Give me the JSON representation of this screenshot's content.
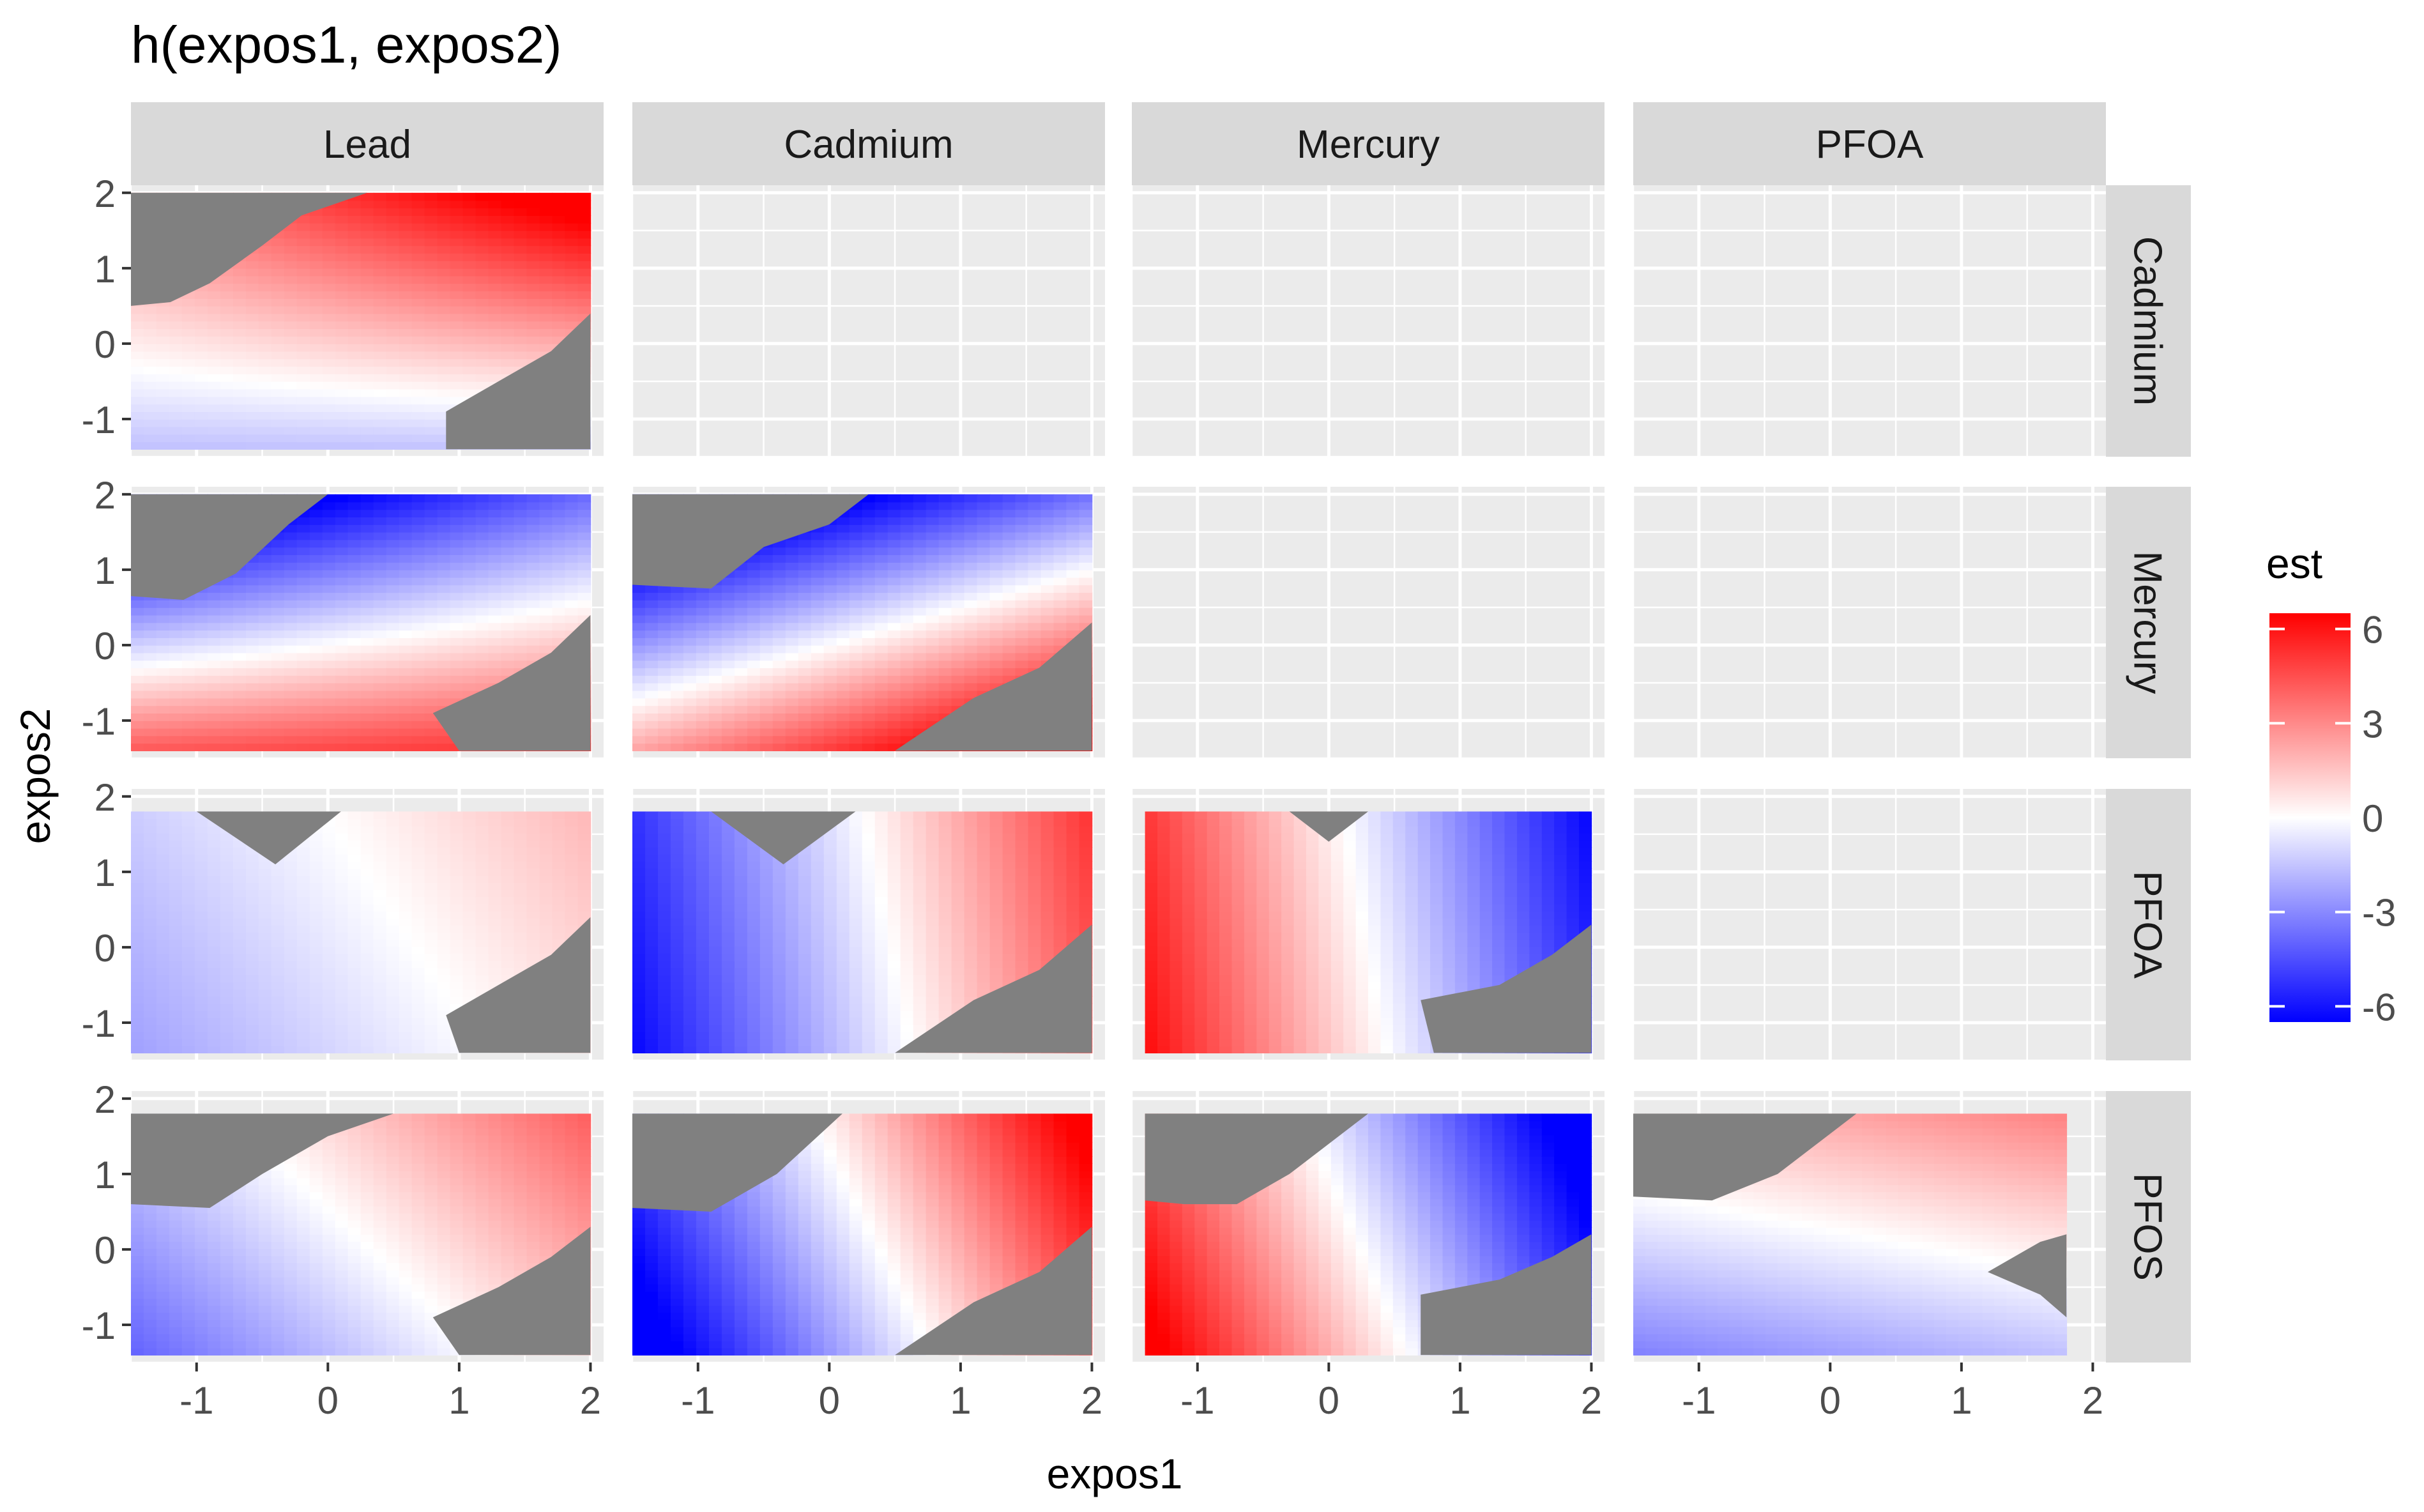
{
  "chart_data": {
    "type": "heatmap",
    "title": "h(expos1, expos2)",
    "xlabel": "expos1",
    "ylabel": "expos2",
    "col_facets": [
      "Lead",
      "Cadmium",
      "Mercury",
      "PFOA"
    ],
    "row_facets": [
      "Cadmium",
      "Mercury",
      "PFOA",
      "PFOS"
    ],
    "x_ticks": [
      "-1",
      "0",
      "1",
      "2"
    ],
    "y_ticks": [
      "-1",
      "0",
      "1",
      "2"
    ],
    "x_tick_values": [
      -1,
      0,
      1,
      2
    ],
    "y_tick_values": [
      -1,
      0,
      1,
      2
    ],
    "xlim": [
      -1.5,
      2.1
    ],
    "ylim": [
      -1.5,
      2.1
    ],
    "grid": true,
    "legend": {
      "title": "est",
      "position": "right",
      "range": [
        -6.5,
        6.5
      ],
      "tick_labels": [
        "6",
        "3",
        "0",
        "-3",
        "-6"
      ],
      "tick_values": [
        6,
        3,
        0,
        -3,
        -6
      ],
      "low_color": "#0000ff",
      "mid_color": "#ffffff",
      "high_color": "#ff0000",
      "na_color": "#808080"
    },
    "panels": [
      {
        "row": "Cadmium",
        "col": "Lead",
        "x_range": [
          -1.5,
          2.0
        ],
        "y_range": [
          -1.4,
          2.0
        ],
        "surface": {
          "a": 0.5,
          "b": 2.0,
          "c": 1.2,
          "x0": 0,
          "y0": 0,
          "bend": 0.35
        },
        "mask_upper_left": [
          [
            -1.5,
            0.5
          ],
          [
            -1.2,
            0.55
          ],
          [
            -0.9,
            0.8
          ],
          [
            -0.5,
            1.3
          ],
          [
            -0.2,
            1.7
          ],
          [
            0.3,
            2.0
          ]
        ],
        "mask_lower_right": [
          [
            0.9,
            -1.4
          ],
          [
            0.9,
            -0.9
          ],
          [
            1.3,
            -0.5
          ],
          [
            1.7,
            -0.1
          ],
          [
            2.0,
            0.4
          ]
        ]
      },
      {
        "row": "Mercury",
        "col": "Lead",
        "x_range": [
          -1.5,
          2.0
        ],
        "y_range": [
          -1.4,
          2.0
        ],
        "surface": {
          "a": 0.8,
          "b": -3.4,
          "c": 0.0,
          "x0": 0,
          "y0": 0,
          "bend": 0.35
        },
        "mask_upper_left": [
          [
            -1.5,
            0.65
          ],
          [
            -1.1,
            0.6
          ],
          [
            -0.7,
            0.95
          ],
          [
            -0.3,
            1.6
          ],
          [
            0.0,
            2.0
          ]
        ],
        "mask_lower_right": [
          [
            1.0,
            -1.4
          ],
          [
            0.8,
            -0.9
          ],
          [
            1.3,
            -0.5
          ],
          [
            1.7,
            -0.1
          ],
          [
            2.0,
            0.4
          ]
        ]
      },
      {
        "row": "Mercury",
        "col": "Cadmium",
        "x_range": [
          -1.5,
          2.0
        ],
        "y_range": [
          -1.4,
          2.0
        ],
        "surface": {
          "a": 1.8,
          "b": -3.6,
          "c": 0.0,
          "x0": 0,
          "y0": 0,
          "bend": 0.0
        },
        "mask_upper_left": [
          [
            -1.5,
            0.8
          ],
          [
            -0.9,
            0.75
          ],
          [
            -0.5,
            1.3
          ],
          [
            0.0,
            1.6
          ],
          [
            0.3,
            2.0
          ]
        ],
        "mask_lower_right": [
          [
            0.5,
            -1.4
          ],
          [
            1.1,
            -0.7
          ],
          [
            1.6,
            -0.3
          ],
          [
            2.0,
            0.3
          ]
        ]
      },
      {
        "row": "PFOA",
        "col": "Lead",
        "x_range": [
          -1.5,
          2.0
        ],
        "y_range": [
          -1.4,
          1.8
        ],
        "surface": {
          "a": 0.9,
          "b": 0.35,
          "c": -0.6,
          "x0": 0,
          "y0": 0,
          "bend": 0.0
        },
        "mask_top_notch": [
          [
            -1.0,
            1.8
          ],
          [
            -0.4,
            1.1
          ],
          [
            0.1,
            1.8
          ]
        ],
        "mask_lower_right": [
          [
            1.0,
            -1.4
          ],
          [
            0.9,
            -0.9
          ],
          [
            1.3,
            -0.5
          ],
          [
            1.7,
            -0.1
          ],
          [
            2.0,
            0.4
          ]
        ]
      },
      {
        "row": "PFOA",
        "col": "Cadmium",
        "x_range": [
          -1.5,
          2.0
        ],
        "y_range": [
          -1.4,
          1.8
        ],
        "surface": {
          "a": 3.0,
          "b": 0.35,
          "c": -1.4,
          "x0": 0,
          "y0": 0,
          "bend": 0.0
        },
        "mask_top_notch": [
          [
            -0.9,
            1.8
          ],
          [
            -0.35,
            1.1
          ],
          [
            0.2,
            1.8
          ]
        ],
        "mask_lower_right": [
          [
            0.5,
            -1.4
          ],
          [
            1.1,
            -0.7
          ],
          [
            1.6,
            -0.3
          ],
          [
            2.0,
            0.3
          ]
        ]
      },
      {
        "row": "PFOA",
        "col": "Mercury",
        "x_range": [
          -1.4,
          2.0
        ],
        "y_range": [
          -1.4,
          1.8
        ],
        "surface": {
          "a": -3.4,
          "b": -0.35,
          "c": 1.0,
          "x0": 0,
          "y0": 0,
          "bend": 0.0
        },
        "mask_top_notch": [
          [
            -0.3,
            1.8
          ],
          [
            0.0,
            1.4
          ],
          [
            0.3,
            1.8
          ]
        ],
        "mask_lower_right": [
          [
            0.8,
            -1.4
          ],
          [
            0.7,
            -0.7
          ],
          [
            1.3,
            -0.5
          ],
          [
            1.7,
            -0.1
          ],
          [
            2.0,
            0.3
          ]
        ]
      },
      {
        "row": "PFOS",
        "col": "Lead",
        "x_range": [
          -1.5,
          2.0
        ],
        "y_range": [
          -1.4,
          1.8
        ],
        "surface": {
          "a": 1.5,
          "b": 0.9,
          "c": -0.5,
          "x0": 0,
          "y0": 0,
          "bend": 0.0
        },
        "mask_upper_left": [
          [
            -1.5,
            0.6
          ],
          [
            -0.9,
            0.55
          ],
          [
            -0.5,
            1.0
          ],
          [
            0.0,
            1.5
          ],
          [
            0.5,
            1.8
          ]
        ],
        "mask_lower_right": [
          [
            1.0,
            -1.4
          ],
          [
            0.8,
            -0.9
          ],
          [
            1.3,
            -0.5
          ],
          [
            1.7,
            -0.1
          ],
          [
            2.0,
            0.3
          ]
        ]
      },
      {
        "row": "PFOS",
        "col": "Cadmium",
        "x_range": [
          -1.5,
          2.0
        ],
        "y_range": [
          -1.4,
          1.8
        ],
        "surface": {
          "a": 3.4,
          "b": 1.0,
          "c": -1.3,
          "x0": 0,
          "y0": 0,
          "bend": 0.0
        },
        "mask_upper_left": [
          [
            -1.5,
            0.55
          ],
          [
            -0.9,
            0.5
          ],
          [
            -0.4,
            1.0
          ],
          [
            0.1,
            1.8
          ]
        ],
        "mask_lower_right": [
          [
            0.5,
            -1.4
          ],
          [
            1.1,
            -0.7
          ],
          [
            1.6,
            -0.3
          ],
          [
            2.0,
            0.3
          ]
        ]
      },
      {
        "row": "PFOS",
        "col": "Mercury",
        "x_range": [
          -1.4,
          2.0
        ],
        "y_range": [
          -1.4,
          1.8
        ],
        "surface": {
          "a": -3.6,
          "b": -0.9,
          "c": 0.9,
          "x0": 0,
          "y0": 0,
          "bend": 0.0
        },
        "mask_upper_left": [
          [
            -1.4,
            0.65
          ],
          [
            -1.1,
            0.6
          ],
          [
            -0.7,
            0.6
          ],
          [
            -0.3,
            1.0
          ],
          [
            0.3,
            1.8
          ]
        ],
        "mask_lower_right": [
          [
            0.7,
            -1.4
          ],
          [
            0.7,
            -0.6
          ],
          [
            1.3,
            -0.4
          ],
          [
            1.7,
            -0.1
          ],
          [
            2.0,
            0.2
          ]
        ]
      },
      {
        "row": "PFOS",
        "col": "PFOA",
        "x_range": [
          -1.5,
          1.8
        ],
        "y_range": [
          -1.4,
          1.8
        ],
        "surface": {
          "a": 0.5,
          "b": 1.5,
          "c": -0.4,
          "x0": 0,
          "y0": 0,
          "bend": 0.0
        },
        "mask_upper_left": [
          [
            -1.5,
            0.7
          ],
          [
            -0.9,
            0.65
          ],
          [
            -0.4,
            1.0
          ],
          [
            0.2,
            1.8
          ]
        ],
        "mask_right_notch": [
          [
            1.8,
            0.2
          ],
          [
            1.6,
            0.1
          ],
          [
            1.2,
            -0.3
          ],
          [
            1.6,
            -0.6
          ],
          [
            1.8,
            -0.9
          ]
        ]
      }
    ]
  }
}
